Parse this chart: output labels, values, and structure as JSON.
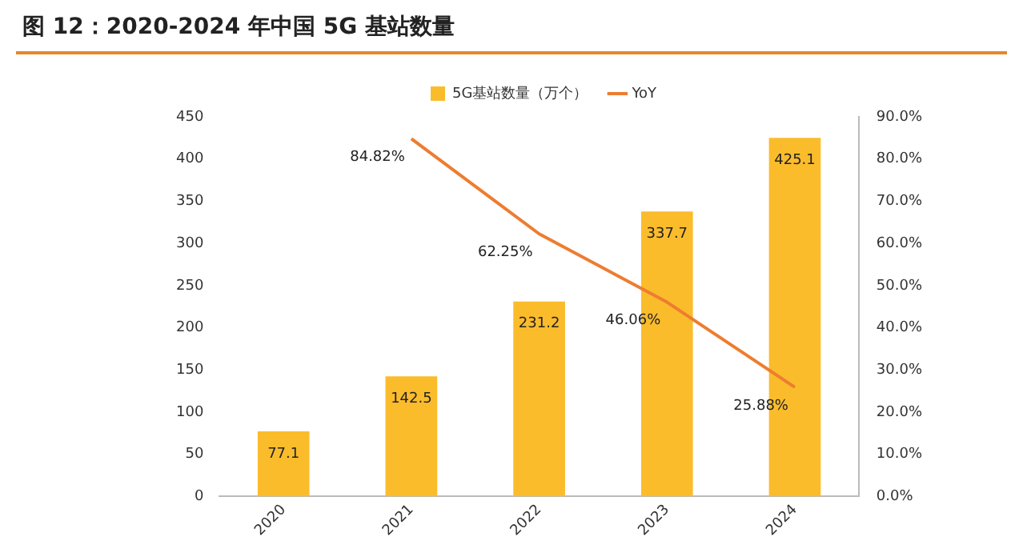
{
  "chart_data": {
    "type": "bar",
    "title": "图 12：2020-2024 年中国 5G 基站数量",
    "categories": [
      "2020",
      "2021",
      "2022",
      "2023",
      "2024"
    ],
    "series": [
      {
        "name": "5G基站数量（万个）",
        "color": "#fbbc2c",
        "values": [
          77.1,
          142.5,
          231.2,
          337.7,
          425.1
        ],
        "value_labels": [
          "77.1",
          "142.5",
          "231.2",
          "337.7",
          "425.1"
        ]
      },
      {
        "name": "YoY",
        "type": "line",
        "axis": "y2",
        "color": "#ed7d31",
        "values": [
          null,
          84.82,
          62.25,
          46.06,
          25.88
        ],
        "value_labels": [
          null,
          "84.82%",
          "62.25%",
          "46.06%",
          "25.88%"
        ]
      }
    ],
    "ylim": [
      0,
      450
    ],
    "yticks": [
      0,
      50,
      100,
      150,
      200,
      250,
      300,
      350,
      400,
      450
    ],
    "y2lim": [
      0,
      90
    ],
    "y2ticks": [
      {
        "value": 0,
        "label": "0.0%"
      },
      {
        "value": 10,
        "label": "10.0%"
      },
      {
        "value": 20,
        "label": "20.0%"
      },
      {
        "value": 30,
        "label": "30.0%"
      },
      {
        "value": 40,
        "label": "40.0%"
      },
      {
        "value": 50,
        "label": "50.0%"
      },
      {
        "value": 60,
        "label": "60.0%"
      },
      {
        "value": 70,
        "label": "70.0%"
      },
      {
        "value": 80,
        "label": "80.0%"
      },
      {
        "value": 90,
        "label": "90.0%"
      }
    ],
    "legend": "top",
    "marker": "none",
    "line_style": "solid",
    "grid": false
  }
}
